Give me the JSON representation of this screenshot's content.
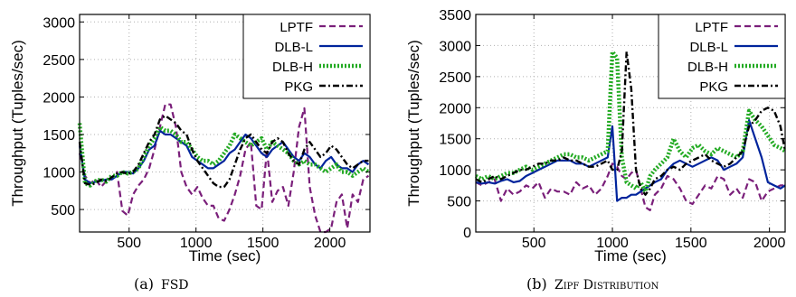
{
  "figure": {
    "captions": [
      "(a) FSD",
      "(b) Zipf Distribution"
    ]
  },
  "chart_data": [
    {
      "type": "line",
      "title": "",
      "caption_label": "(a)",
      "caption_text": "FSD",
      "xlabel": "Time (sec)",
      "ylabel": "Throughput (Tuples/sec)",
      "xlim": [
        130,
        2300
      ],
      "ylim": [
        200,
        3100
      ],
      "xticks": [
        500,
        1000,
        1500,
        2000
      ],
      "yticks": [
        500,
        1000,
        1500,
        2000,
        2500,
        3000
      ],
      "grid": true,
      "legend_position": "top-right",
      "series": [
        {
          "name": "LPTF",
          "color": "#7a1f7a",
          "style": "dashed",
          "x": [
            130,
            170,
            210,
            250,
            290,
            330,
            370,
            410,
            450,
            490,
            530,
            570,
            610,
            650,
            690,
            730,
            770,
            810,
            850,
            890,
            930,
            970,
            1010,
            1050,
            1090,
            1130,
            1170,
            1210,
            1250,
            1290,
            1330,
            1370,
            1410,
            1450,
            1490,
            1530,
            1570,
            1610,
            1650,
            1690,
            1730,
            1770,
            1810,
            1850,
            1890,
            1930,
            1970,
            2010,
            2050,
            2090,
            2130,
            2170,
            2210,
            2250,
            2290
          ],
          "y": [
            1250,
            950,
            850,
            900,
            800,
            880,
            920,
            1000,
            480,
            420,
            700,
            820,
            900,
            1050,
            1300,
            1600,
            1900,
            1900,
            1600,
            1000,
            800,
            700,
            800,
            650,
            550,
            550,
            380,
            350,
            500,
            700,
            950,
            1300,
            1400,
            550,
            500,
            1300,
            600,
            750,
            800,
            550,
            1000,
            1600,
            1850,
            800,
            420,
            200,
            200,
            250,
            600,
            700,
            250,
            700,
            600,
            900,
            950
          ]
        },
        {
          "name": "DLB-L",
          "color": "#00249c",
          "style": "solid",
          "x": [
            130,
            170,
            210,
            250,
            290,
            330,
            370,
            410,
            450,
            490,
            530,
            570,
            610,
            650,
            690,
            730,
            770,
            810,
            850,
            890,
            930,
            970,
            1010,
            1050,
            1090,
            1130,
            1170,
            1210,
            1250,
            1290,
            1330,
            1370,
            1410,
            1450,
            1490,
            1530,
            1570,
            1610,
            1650,
            1690,
            1730,
            1770,
            1810,
            1850,
            1890,
            1930,
            1970,
            2010,
            2050,
            2090,
            2130,
            2170,
            2210,
            2250,
            2290
          ],
          "y": [
            1350,
            900,
            850,
            870,
            880,
            900,
            900,
            950,
            1000,
            1000,
            980,
            1050,
            1150,
            1300,
            1350,
            1550,
            1500,
            1500,
            1450,
            1400,
            1350,
            1200,
            1150,
            1100,
            1050,
            1050,
            1100,
            1150,
            1250,
            1300,
            1400,
            1500,
            1450,
            1350,
            1250,
            1200,
            1300,
            1350,
            1400,
            1300,
            1200,
            1150,
            1250,
            1200,
            1100,
            1050,
            1150,
            1200,
            1100,
            1050,
            1050,
            1000,
            1100,
            1150,
            1100
          ]
        },
        {
          "name": "DLB-H",
          "color": "#22aa22",
          "style": "dotted-thick",
          "x": [
            130,
            170,
            210,
            250,
            290,
            330,
            370,
            410,
            450,
            490,
            530,
            570,
            610,
            650,
            690,
            730,
            770,
            810,
            850,
            890,
            930,
            970,
            1010,
            1050,
            1090,
            1130,
            1170,
            1210,
            1250,
            1290,
            1330,
            1370,
            1410,
            1450,
            1490,
            1530,
            1570,
            1610,
            1650,
            1690,
            1730,
            1770,
            1810,
            1850,
            1890,
            1930,
            1970,
            2010,
            2050,
            2090,
            2130,
            2170,
            2210,
            2250,
            2290
          ],
          "y": [
            1650,
            850,
            820,
            880,
            900,
            870,
            950,
            950,
            1000,
            980,
            1000,
            1050,
            1200,
            1350,
            1450,
            1600,
            1550,
            1550,
            1500,
            1400,
            1400,
            1300,
            1200,
            1150,
            1150,
            1100,
            1150,
            1250,
            1350,
            1500,
            1450,
            1400,
            1350,
            1400,
            1450,
            1300,
            1400,
            1350,
            1300,
            1250,
            1150,
            1100,
            1150,
            1100,
            1100,
            1050,
            1000,
            1050,
            1100,
            1000,
            1000,
            950,
            1000,
            1050,
            1000
          ]
        },
        {
          "name": "PKG",
          "color": "#000000",
          "style": "dashdot",
          "x": [
            130,
            170,
            210,
            250,
            290,
            330,
            370,
            410,
            450,
            490,
            530,
            570,
            610,
            650,
            690,
            730,
            770,
            810,
            850,
            890,
            930,
            970,
            1010,
            1050,
            1090,
            1130,
            1170,
            1210,
            1250,
            1290,
            1330,
            1370,
            1410,
            1450,
            1490,
            1530,
            1570,
            1610,
            1650,
            1690,
            1730,
            1770,
            1810,
            1850,
            1890,
            1930,
            1970,
            2010,
            2050,
            2090,
            2130,
            2170,
            2210,
            2250,
            2290
          ],
          "y": [
            1400,
            850,
            830,
            850,
            900,
            880,
            930,
            980,
            1000,
            970,
            1000,
            1100,
            1250,
            1400,
            1500,
            1700,
            1750,
            1700,
            1650,
            1550,
            1500,
            1300,
            1150,
            1050,
            950,
            850,
            800,
            800,
            900,
            1100,
            1300,
            1450,
            1500,
            1400,
            1300,
            1250,
            1400,
            1450,
            1400,
            1250,
            1150,
            1100,
            1300,
            1400,
            1300,
            1200,
            1250,
            1350,
            1300,
            1200,
            1100,
            1050,
            1100,
            1150,
            1150
          ]
        }
      ]
    },
    {
      "type": "line",
      "title": "",
      "caption_label": "(b)",
      "caption_text": "Zipf Distribution",
      "xlabel": "Time (sec)",
      "ylabel": "Throughput (Tuples/sec)",
      "xlim": [
        130,
        2100
      ],
      "ylim": [
        0,
        3500
      ],
      "xticks": [
        500,
        1000,
        1500,
        2000
      ],
      "yticks": [
        0,
        500,
        1000,
        1500,
        2000,
        2500,
        3000,
        3500
      ],
      "grid": true,
      "legend_position": "top-right",
      "series": [
        {
          "name": "LPTF",
          "color": "#7a1f7a",
          "style": "dashed",
          "x": [
            130,
            170,
            210,
            250,
            290,
            330,
            370,
            410,
            450,
            490,
            530,
            570,
            610,
            650,
            690,
            730,
            770,
            810,
            850,
            890,
            930,
            970,
            1000,
            1030,
            1060,
            1090,
            1120,
            1150,
            1180,
            1210,
            1240,
            1270,
            1310,
            1350,
            1390,
            1430,
            1470,
            1510,
            1550,
            1590,
            1630,
            1670,
            1710,
            1750,
            1790,
            1830,
            1870,
            1910,
            1950,
            1990,
            2030,
            2070,
            2100
          ],
          "y": [
            800,
            750,
            800,
            850,
            500,
            700,
            600,
            650,
            750,
            700,
            800,
            550,
            700,
            650,
            650,
            600,
            800,
            700,
            750,
            600,
            700,
            900,
            1100,
            1050,
            900,
            850,
            950,
            1000,
            700,
            400,
            350,
            600,
            700,
            900,
            850,
            700,
            500,
            450,
            600,
            750,
            700,
            900,
            850,
            600,
            700,
            550,
            850,
            800,
            500,
            650,
            700,
            750,
            750
          ]
        },
        {
          "name": "DLB-L",
          "color": "#00249c",
          "style": "solid",
          "x": [
            130,
            170,
            210,
            250,
            290,
            330,
            370,
            410,
            450,
            490,
            530,
            570,
            610,
            650,
            690,
            730,
            770,
            810,
            850,
            890,
            930,
            970,
            1000,
            1030,
            1060,
            1090,
            1120,
            1150,
            1180,
            1210,
            1240,
            1270,
            1310,
            1350,
            1390,
            1430,
            1470,
            1510,
            1550,
            1590,
            1630,
            1670,
            1710,
            1750,
            1790,
            1830,
            1870,
            1910,
            1950,
            1990,
            2030,
            2070,
            2100
          ],
          "y": [
            800,
            780,
            800,
            780,
            820,
            850,
            800,
            820,
            900,
            950,
            1000,
            1050,
            1100,
            1150,
            1150,
            1150,
            1100,
            1100,
            1050,
            1100,
            1150,
            1200,
            1700,
            500,
            550,
            550,
            600,
            600,
            650,
            700,
            750,
            800,
            850,
            1000,
            1100,
            1150,
            1100,
            1050,
            1100,
            1150,
            1200,
            1150,
            1000,
            1050,
            1100,
            1200,
            1800,
            1500,
            1200,
            800,
            750,
            700,
            750
          ]
        },
        {
          "name": "DLB-H",
          "color": "#22aa22",
          "style": "dotted-thick",
          "x": [
            130,
            170,
            210,
            250,
            290,
            330,
            370,
            410,
            450,
            490,
            530,
            570,
            610,
            650,
            690,
            730,
            770,
            810,
            850,
            890,
            930,
            970,
            1000,
            1030,
            1060,
            1090,
            1120,
            1150,
            1180,
            1210,
            1240,
            1270,
            1310,
            1350,
            1390,
            1430,
            1470,
            1510,
            1550,
            1590,
            1630,
            1670,
            1710,
            1750,
            1790,
            1830,
            1870,
            1910,
            1950,
            1990,
            2030,
            2070,
            2100
          ],
          "y": [
            900,
            850,
            900,
            850,
            900,
            950,
            950,
            1000,
            1050,
            1000,
            1050,
            1100,
            1150,
            1200,
            1250,
            1250,
            1200,
            1200,
            1150,
            1200,
            1250,
            1300,
            2900,
            2800,
            1200,
            800,
            750,
            700,
            800,
            650,
            900,
            1000,
            1100,
            1200,
            1500,
            1300,
            1200,
            1350,
            1400,
            1300,
            1250,
            1350,
            1300,
            1250,
            1200,
            1300,
            1950,
            1800,
            1700,
            1550,
            1400,
            1350,
            1300
          ]
        },
        {
          "name": "PKG",
          "color": "#000000",
          "style": "dashdot",
          "x": [
            130,
            170,
            210,
            250,
            290,
            330,
            370,
            410,
            450,
            490,
            530,
            570,
            610,
            650,
            690,
            730,
            770,
            810,
            850,
            890,
            930,
            970,
            1000,
            1030,
            1060,
            1090,
            1120,
            1150,
            1180,
            1210,
            1240,
            1270,
            1310,
            1350,
            1390,
            1430,
            1470,
            1510,
            1550,
            1590,
            1630,
            1670,
            1710,
            1750,
            1790,
            1830,
            1870,
            1910,
            1950,
            1990,
            2030,
            2070,
            2100
          ],
          "y": [
            850,
            800,
            850,
            900,
            850,
            900,
            950,
            1000,
            1000,
            1050,
            1100,
            1100,
            1150,
            1150,
            1200,
            1150,
            1150,
            1100,
            1050,
            1050,
            1100,
            1150,
            1000,
            1000,
            1300,
            2900,
            2300,
            1000,
            700,
            600,
            700,
            850,
            900,
            1000,
            1050,
            1000,
            1100,
            1150,
            1200,
            1250,
            1150,
            1100,
            1050,
            1100,
            1200,
            1300,
            1700,
            1800,
            1950,
            2000,
            1950,
            1700,
            1300
          ]
        }
      ]
    }
  ]
}
